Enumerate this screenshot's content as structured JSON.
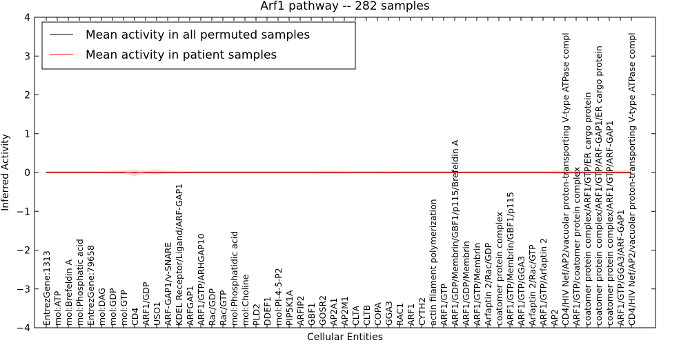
{
  "chart_data": {
    "type": "line",
    "title": "Arf1 pathway -- 282 samples",
    "xlabel": "Cellular Entities",
    "ylabel": "Inferred Activity",
    "ylim": [
      -4,
      4
    ],
    "yticks": [
      -4,
      -3,
      -2,
      -1,
      0,
      1,
      2,
      3,
      4
    ],
    "ytick_labels": [
      "−4",
      "−3",
      "−2",
      "−1",
      "0",
      "1",
      "2",
      "3",
      "4"
    ],
    "grid": false,
    "legend_position": "top-left",
    "categories": [
      "EntrezGene:1313",
      "mol:ATP",
      "mol:Brefeldin A",
      "mol:Phosphatic acid",
      "EntrezGene:79658",
      "mol:DAG",
      "mol:GDP",
      "mol:GTP",
      "CD4",
      "ARF1/GDP",
      "USO1",
      "ARF-GAP1/v-SNARE",
      "KDEL Receptor/Ligand/ARF-GAP1",
      "ARFGAP1",
      "ARF1/GTP/ARHGAP10",
      "Rac/GDP",
      "Rac/GTP",
      "mol:Phosphatidic acid",
      "mol:Choline",
      "PLD2",
      "DDEF1",
      "mol:PI-4-5-P2",
      "PIP5K1A",
      "ARFIP2",
      "GBF1",
      "GOSR2",
      "AP2A1",
      "AP2M1",
      "CLTA",
      "CLTB",
      "COPA",
      "GGA3",
      "RAC1",
      "ARF1",
      "CYTH2",
      "actin filament polymerization",
      "ARF1/GTP",
      "ARF1/GDP/Membrin/GBF1/p115/Brefeldin A",
      "ARF1/GDP/Membrin",
      "ARF1/GTP/Membrin",
      "Arfaptin 2/Rac/GDP",
      "coatomer protein complex",
      "ARF1/GTP/Membrin/GBF1/p115",
      "ARF1/GTP/GGA3",
      "Arfaptin 2/Rac/GTP",
      "ARF1/GTP/Arfaptin 2",
      "AP2",
      "CD4/HIV Nef/AP2/vacuolar proton-transporting V-type ATPase compl",
      "ARF1/GTP/coatomer protein complex",
      "coatomer protein complex/ARF1/GTP/ER cargo protein",
      "coatomer protein complex/ARF1/GTP/ARF-GAP1/ER cargo protein",
      "coatomer protein complex/ARF1/GTP/ARF-GAP1",
      "ARF1/GTP/GGA3/ARF-GAP1",
      "CD4/HIV Nef/AP2/vacuolar proton-transporting V-type ATPase compl"
    ],
    "series": [
      {
        "name": "Mean activity in all permuted samples",
        "color": "#000000",
        "values": [
          0,
          0,
          0,
          0,
          0,
          0,
          0,
          0,
          0,
          0,
          0,
          0,
          0,
          0,
          0,
          0,
          0,
          0,
          0,
          0,
          0,
          0,
          0,
          0,
          0,
          0,
          0,
          0,
          0,
          0,
          0,
          0,
          0,
          0,
          0,
          0,
          0,
          0,
          0,
          0,
          0,
          0,
          0,
          0,
          0,
          0,
          0,
          0,
          0,
          0,
          0,
          0,
          0,
          0
        ],
        "band": [
          0.02,
          0.02,
          0.02,
          0.02,
          0.02,
          0.02,
          0.02,
          0.02,
          0.02,
          0.02,
          0.02,
          0.02,
          0.02,
          0.02,
          0.02,
          0.02,
          0.02,
          0.02,
          0.02,
          0.02,
          0.02,
          0.02,
          0.02,
          0.02,
          0.02,
          0.02,
          0.02,
          0.02,
          0.02,
          0.02,
          0.02,
          0.02,
          0.02,
          0.02,
          0.02,
          0.02,
          0.02,
          0.02,
          0.02,
          0.02,
          0.02,
          0.02,
          0.02,
          0.02,
          0.02,
          0.02,
          0.02,
          0.02,
          0.02,
          0.02,
          0.02,
          0.02,
          0.02,
          0.02
        ]
      },
      {
        "name": "Mean activity in patient samples",
        "color": "#ff0000",
        "values": [
          0.01,
          0.01,
          0.01,
          0.01,
          0.01,
          0.01,
          0.01,
          0.01,
          -0.01,
          0.01,
          0.01,
          0.01,
          0.01,
          0.01,
          0.01,
          0.01,
          0.01,
          0.01,
          0.01,
          0.01,
          0.01,
          0.01,
          0.01,
          0.01,
          0.01,
          0.01,
          0.01,
          0.01,
          0.01,
          0.01,
          0.01,
          0.01,
          0.01,
          0.01,
          0.01,
          0.01,
          0.01,
          0.01,
          0.01,
          0.01,
          0.01,
          0.01,
          0.01,
          0.01,
          0.01,
          0.01,
          0.01,
          0.01,
          0.01,
          0.01,
          0.01,
          0.01,
          0.01,
          0.01
        ],
        "band": [
          0.03,
          0.03,
          0.03,
          0.03,
          0.03,
          0.03,
          0.04,
          0.05,
          0.09,
          0.04,
          0.07,
          0.04,
          0.04,
          0.03,
          0.03,
          0.03,
          0.03,
          0.03,
          0.03,
          0.03,
          0.03,
          0.03,
          0.03,
          0.03,
          0.03,
          0.04,
          0.04,
          0.04,
          0.03,
          0.03,
          0.03,
          0.04,
          0.03,
          0.03,
          0.03,
          0.03,
          0.03,
          0.03,
          0.03,
          0.03,
          0.03,
          0.03,
          0.03,
          0.03,
          0.03,
          0.03,
          0.04,
          0.05,
          0.04,
          0.04,
          0.04,
          0.04,
          0.05,
          0.05
        ]
      }
    ]
  }
}
